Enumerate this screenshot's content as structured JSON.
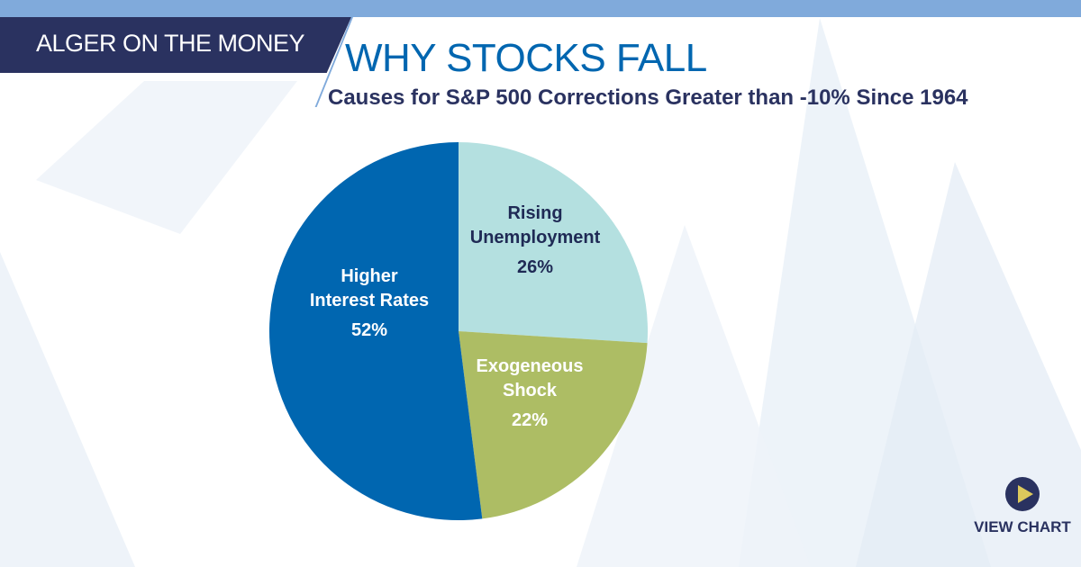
{
  "header": {
    "brand": "ALGER ON THE MONEY",
    "title": "WHY STOCKS FALL",
    "subtitle": "Causes for S&P 500 Corrections Greater than -10% Since 1964"
  },
  "cta": {
    "label": "VIEW CHART",
    "icon": "play-icon"
  },
  "colors": {
    "brand_navy": "#2a3260",
    "accent_blue": "#0066b0",
    "top_bar": "#80aadb"
  },
  "chart_data": {
    "type": "pie",
    "title": "Causes for S&P 500 Corrections Greater than -10% Since 1964",
    "slices": [
      {
        "label": [
          "Rising",
          "Unemployment"
        ],
        "value": 26,
        "display": "26%",
        "color": "#b4e0e0",
        "text_color": "#1f2a55"
      },
      {
        "label": [
          "Exogeneous",
          "Shock"
        ],
        "value": 22,
        "display": "22%",
        "color": "#adbd64",
        "text_color": "#ffffff"
      },
      {
        "label": [
          "Higher",
          "Interest Rates"
        ],
        "value": 52,
        "display": "52%",
        "color": "#0066b0",
        "text_color": "#ffffff"
      }
    ]
  }
}
